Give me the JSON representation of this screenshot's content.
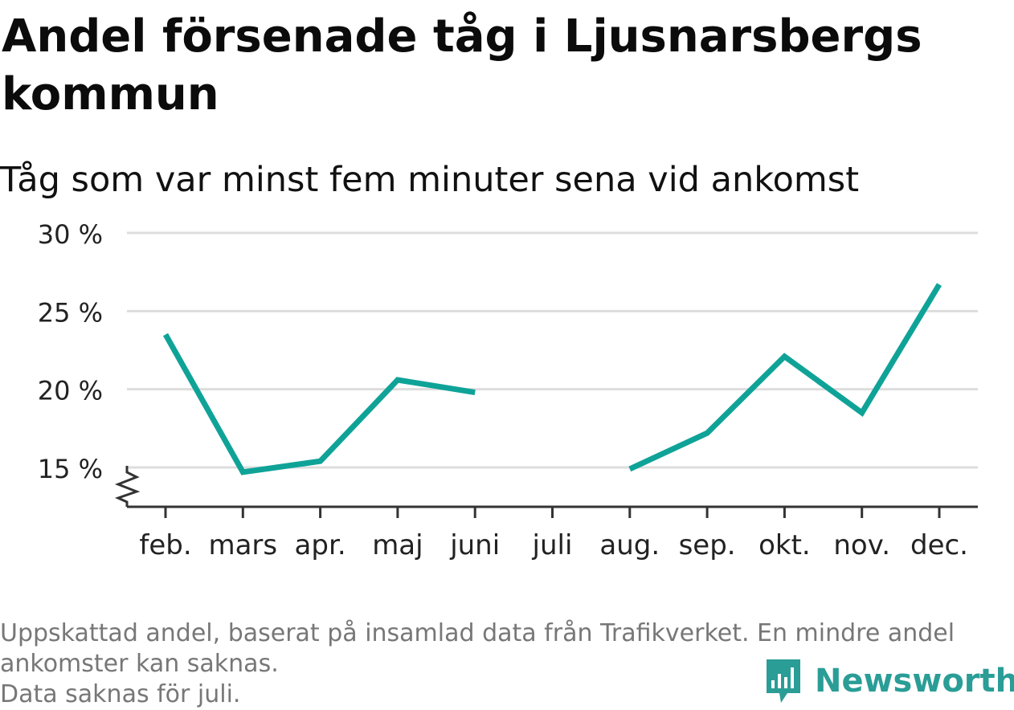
{
  "title": "Andel försenade tåg i Ljusnarsbergs kommun",
  "subtitle": "Tåg som var minst fem minuter sena vid ankomst",
  "footnote": {
    "line1": "Uppskattad andel, baserat på insamlad data från Trafikverket. En mindre andel",
    "line2": "ankomster kan saknas.",
    "line3": "Data saknas för juli."
  },
  "brand": {
    "name": "Newsworthy",
    "icon": "newsworthy-logo-icon",
    "color": "#2a9d96"
  },
  "colors": {
    "line": "#0fa398",
    "grid": "#dddddd",
    "axis": "#333333"
  },
  "chart_data": {
    "type": "line",
    "categories": [
      "feb.",
      "mars",
      "apr.",
      "maj",
      "juni",
      "juli",
      "aug.",
      "sep.",
      "okt.",
      "nov.",
      "dec."
    ],
    "series": [
      {
        "values": [
          23.5,
          14.7,
          15.4,
          20.6,
          19.8,
          null,
          14.9,
          17.2,
          22.1,
          18.5,
          26.7
        ]
      }
    ],
    "y_ticks": [
      15,
      20,
      25,
      30
    ],
    "y_tick_labels": [
      "15 %",
      "20 %",
      "25 %",
      "30 %"
    ],
    "ylim": [
      12.5,
      30
    ],
    "y_axis_break": true,
    "grid": true
  }
}
